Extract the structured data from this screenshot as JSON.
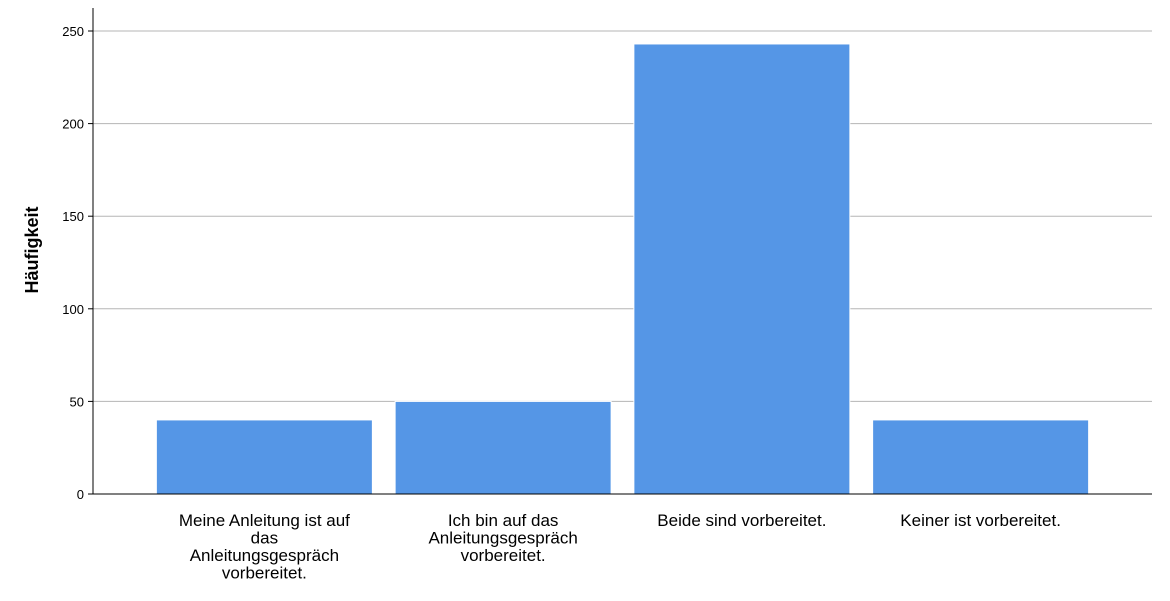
{
  "chart_data": {
    "type": "bar",
    "title": "",
    "xlabel": "",
    "ylabel": "Häufigkeit",
    "ylim": [
      0,
      260
    ],
    "yticks": [
      0,
      50,
      100,
      150,
      200,
      250
    ],
    "grid": true,
    "categories": [
      "Meine Anleitung ist auf das Anleitungsgespräch vorbereitet.",
      "Ich bin auf das Anleitungsgespräch vorbereitet.",
      "Beide sind vorbereitet.",
      "Keiner ist vorbereitet."
    ],
    "category_lines": [
      [
        "Meine Anleitung ist auf",
        "das",
        "Anleitungsgespräch",
        "vorbereitet."
      ],
      [
        "Ich bin auf das",
        "Anleitungsgespräch",
        "vorbereitet."
      ],
      [
        "Beide sind vorbereitet."
      ],
      [
        "Keiner ist vorbereitet."
      ]
    ],
    "values": [
      40,
      50,
      243,
      40
    ],
    "bar_color": "#5596e6"
  }
}
